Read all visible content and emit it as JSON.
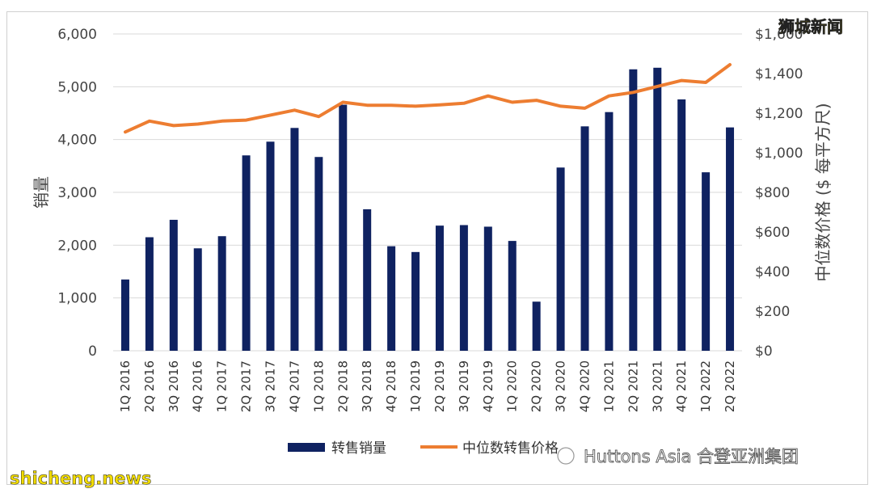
{
  "watermarks": {
    "top_right": "狮城新闻",
    "bottom_left": "shicheng.news",
    "bottom_right": "Huttons Asia 合登亚洲集团"
  },
  "chart_data": {
    "type": "bar",
    "categories": [
      "1Q 2016",
      "2Q 2016",
      "3Q 2016",
      "4Q 2016",
      "1Q 2017",
      "2Q 2017",
      "3Q 2017",
      "4Q 2017",
      "1Q 2018",
      "2Q 2018",
      "3Q 2018",
      "4Q 2018",
      "1Q 2019",
      "2Q 2019",
      "3Q 2019",
      "4Q 2019",
      "1Q 2020",
      "2Q 2020",
      "3Q 2020",
      "4Q 2020",
      "1Q 2021",
      "2Q 2021",
      "3Q 2021",
      "4Q 2021",
      "1Q 2022",
      "2Q 2022"
    ],
    "series": [
      {
        "name": "转售销量",
        "type": "bar",
        "axis": "left",
        "color": "#0f2261",
        "values": [
          1350,
          2150,
          2480,
          1940,
          2170,
          3700,
          3960,
          4220,
          3670,
          4660,
          2680,
          1980,
          1870,
          2370,
          2380,
          2350,
          2080,
          930,
          3470,
          4250,
          4520,
          5330,
          5360,
          4760,
          3380,
          4230
        ]
      },
      {
        "name": "中位数转售价格",
        "type": "line",
        "axis": "right",
        "color": "#ed7d31",
        "values": [
          1105,
          1160,
          1137,
          1145,
          1160,
          1165,
          1190,
          1215,
          1183,
          1255,
          1240,
          1240,
          1235,
          1242,
          1250,
          1287,
          1255,
          1265,
          1235,
          1225,
          1287,
          1305,
          1335,
          1365,
          1355,
          1445
        ]
      }
    ],
    "ylabel": "销量",
    "y2label": "中位数价格 ($ 每平方尺)",
    "ylim": [
      0,
      6000
    ],
    "y2lim": [
      0,
      1600
    ],
    "yticks": [
      "0",
      "1,000",
      "2,000",
      "3,000",
      "4,000",
      "5,000",
      "6,000"
    ],
    "y2ticks": [
      "$0",
      "$200",
      "$400",
      "$600",
      "$800",
      "$1,000",
      "$1,200",
      "$1,400",
      "$1,600"
    ],
    "grid": true,
    "legend_position": "bottom"
  }
}
